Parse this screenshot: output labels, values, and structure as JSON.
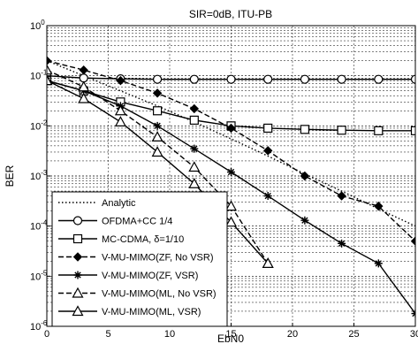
{
  "chart_data": {
    "type": "line",
    "title": "SIR=0dB, ITU-PB",
    "xlabel": "EbN0",
    "ylabel": "BER",
    "xlim": [
      0,
      30
    ],
    "ylim": [
      1e-06,
      1
    ],
    "yscale": "log",
    "grid": true,
    "legend_position": "bottom-left",
    "x_ticks": [
      "0",
      "5",
      "10",
      "15",
      "20",
      "25",
      "30"
    ],
    "y_ticks": [
      {
        "base": "10",
        "exp": "0"
      },
      {
        "base": "10",
        "exp": "-1"
      },
      {
        "base": "10",
        "exp": "-2"
      },
      {
        "base": "10",
        "exp": "-3"
      },
      {
        "base": "10",
        "exp": "-4"
      },
      {
        "base": "10",
        "exp": "-5"
      },
      {
        "base": "10",
        "exp": "-6"
      }
    ],
    "legend_labels": [
      "Analytic",
      "OFDMA+CC 1/4",
      "MC-CDMA, δ=1/10",
      "V-MU-MIMO(ZF, No VSR)",
      "V-MU-MIMO(ZF, VSR)",
      "V-MU-MIMO(ML, No VSR)",
      "V-MU-MIMO(ML, VSR)"
    ],
    "series": [
      {
        "name": "Analytic",
        "style": "dotted",
        "marker": "none",
        "x": [
          0,
          3,
          6,
          9,
          12,
          15,
          18,
          21,
          24,
          27,
          30
        ],
        "y": [
          0.2,
          0.1,
          0.05,
          0.025,
          0.012,
          0.0055,
          0.0025,
          0.0011,
          0.0005,
          0.00022,
          0.0001
        ]
      },
      {
        "name": "OFDMA+CC 1/4",
        "style": "solid",
        "marker": "circle",
        "x": [
          0,
          3,
          6,
          9,
          12,
          15,
          18,
          21,
          24,
          27,
          30
        ],
        "y": [
          0.1,
          0.09,
          0.087,
          0.085,
          0.085,
          0.085,
          0.085,
          0.085,
          0.085,
          0.085,
          0.085
        ]
      },
      {
        "name": "MC-CDMA, δ=1/10",
        "style": "solid",
        "marker": "square",
        "x": [
          0,
          3,
          6,
          9,
          12,
          15,
          18,
          21,
          24,
          27,
          30
        ],
        "y": [
          0.08,
          0.05,
          0.03,
          0.02,
          0.013,
          0.01,
          0.009,
          0.0085,
          0.0082,
          0.008,
          0.008
        ]
      },
      {
        "name": "V-MU-MIMO(ZF, No VSR)",
        "style": "dashed",
        "marker": "diamond",
        "x": [
          0,
          3,
          6,
          9,
          12,
          15,
          18,
          21,
          24,
          27,
          30
        ],
        "y": [
          0.2,
          0.13,
          0.08,
          0.045,
          0.022,
          0.009,
          0.0032,
          0.001,
          0.0004,
          0.00025,
          5e-05
        ]
      },
      {
        "name": "V-MU-MIMO(ZF, VSR)",
        "style": "solid",
        "marker": "star",
        "x": [
          0,
          3,
          6,
          9,
          12,
          15,
          18,
          21,
          24,
          27,
          30
        ],
        "y": [
          0.08,
          0.05,
          0.025,
          0.01,
          0.0035,
          0.0012,
          0.0004,
          0.00013,
          4.5e-05,
          1.8e-05,
          1.8e-06
        ]
      },
      {
        "name": "V-MU-MIMO(ML, No VSR)",
        "style": "dashed",
        "marker": "triangle",
        "x": [
          0,
          3,
          6,
          9,
          12,
          15,
          18
        ],
        "y": [
          0.13,
          0.06,
          0.02,
          0.006,
          0.0015,
          0.00025,
          1.8e-05
        ]
      },
      {
        "name": "V-MU-MIMO(ML, VSR)",
        "style": "solid",
        "marker": "triangle",
        "x": [
          0,
          3,
          6,
          9,
          12,
          15,
          18
        ],
        "y": [
          0.08,
          0.035,
          0.012,
          0.003,
          0.0007,
          0.00012,
          1.8e-05
        ]
      }
    ]
  }
}
